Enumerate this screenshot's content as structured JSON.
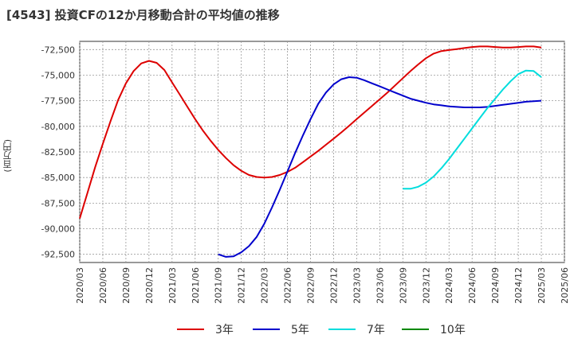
{
  "chart_data": {
    "type": "line",
    "title": "[4543]  投資CFの12か月移動合計の平均値の推移",
    "ylabel": "(百万円)",
    "xlabel": "",
    "ylim": [
      -93300,
      -71700
    ],
    "yticks": [
      -72500,
      -75000,
      -77500,
      -80000,
      -82500,
      -85000,
      -87500,
      -90000,
      -92500
    ],
    "ytick_labels": [
      "-72,500",
      "-75,000",
      "-77,500",
      "-80,000",
      "-82,500",
      "-85,000",
      "-87,500",
      "-90,000",
      "-92,500"
    ],
    "x_range": [
      "2020-03",
      "2025-06"
    ],
    "xtick_labels": [
      "2020/03",
      "2020/06",
      "2020/09",
      "2020/12",
      "2021/03",
      "2021/06",
      "2021/09",
      "2021/12",
      "2022/03",
      "2022/06",
      "2022/09",
      "2022/12",
      "2023/03",
      "2023/06",
      "2023/09",
      "2023/12",
      "2024/03",
      "2024/06",
      "2024/09",
      "2024/12",
      "2025/03",
      "2025/06"
    ],
    "grid": true,
    "legend_position": "bottom",
    "series": [
      {
        "name": "3年",
        "color": "#dd0000",
        "x": [
          "2020-03",
          "2020-04",
          "2020-05",
          "2020-06",
          "2020-07",
          "2020-08",
          "2020-09",
          "2020-10",
          "2020-11",
          "2020-12",
          "2021-01",
          "2021-02",
          "2021-03",
          "2021-04",
          "2021-05",
          "2021-06",
          "2021-07",
          "2021-08",
          "2021-09",
          "2021-10",
          "2021-11",
          "2021-12",
          "2022-01",
          "2022-02",
          "2022-03",
          "2022-04",
          "2022-05",
          "2022-06",
          "2022-07",
          "2022-08",
          "2022-09",
          "2022-10",
          "2022-11",
          "2022-12",
          "2023-01",
          "2023-02",
          "2023-03",
          "2023-04",
          "2023-05",
          "2023-06",
          "2023-07",
          "2023-08",
          "2023-09",
          "2023-10",
          "2023-11",
          "2023-12",
          "2024-01",
          "2024-02",
          "2024-03",
          "2024-04",
          "2024-05",
          "2024-06",
          "2024-07",
          "2024-08",
          "2024-09",
          "2024-10",
          "2024-11",
          "2024-12",
          "2025-01",
          "2025-02",
          "2025-03"
        ],
        "values": [
          -89000,
          -86500,
          -84000,
          -81700,
          -79500,
          -77400,
          -75800,
          -74600,
          -73850,
          -73600,
          -73800,
          -74500,
          -75700,
          -76900,
          -78100,
          -79300,
          -80400,
          -81400,
          -82300,
          -83100,
          -83800,
          -84350,
          -84750,
          -84950,
          -85000,
          -84950,
          -84750,
          -84450,
          -84050,
          -83500,
          -82950,
          -82400,
          -81800,
          -81200,
          -80600,
          -79950,
          -79300,
          -78650,
          -78000,
          -77350,
          -76700,
          -76000,
          -75300,
          -74600,
          -73950,
          -73350,
          -72900,
          -72650,
          -72550,
          -72450,
          -72350,
          -72250,
          -72200,
          -72200,
          -72250,
          -72300,
          -72300,
          -72250,
          -72200,
          -72200,
          -72300
        ]
      },
      {
        "name": "5年",
        "color": "#0000cc",
        "x": [
          "2021-09",
          "2021-10",
          "2021-11",
          "2021-12",
          "2022-01",
          "2022-02",
          "2022-03",
          "2022-04",
          "2022-05",
          "2022-06",
          "2022-07",
          "2022-08",
          "2022-09",
          "2022-10",
          "2022-11",
          "2022-12",
          "2023-01",
          "2023-02",
          "2023-03",
          "2023-04",
          "2023-05",
          "2023-06",
          "2023-07",
          "2023-08",
          "2023-09",
          "2023-10",
          "2023-11",
          "2023-12",
          "2024-01",
          "2024-02",
          "2024-03",
          "2024-04",
          "2024-05",
          "2024-06",
          "2024-07",
          "2024-08",
          "2024-09",
          "2024-10",
          "2024-11",
          "2024-12",
          "2025-01",
          "2025-02",
          "2025-03"
        ],
        "values": [
          -92500,
          -92750,
          -92700,
          -92300,
          -91700,
          -90800,
          -89500,
          -87900,
          -86200,
          -84400,
          -82600,
          -80900,
          -79300,
          -77800,
          -76700,
          -75900,
          -75400,
          -75200,
          -75250,
          -75500,
          -75800,
          -76100,
          -76400,
          -76700,
          -77000,
          -77300,
          -77500,
          -77700,
          -77850,
          -77950,
          -78050,
          -78100,
          -78150,
          -78150,
          -78150,
          -78100,
          -78000,
          -77900,
          -77800,
          -77700,
          -77600,
          -77550,
          -77500
        ]
      },
      {
        "name": "7年",
        "color": "#00dddd",
        "x": [
          "2023-09",
          "2023-10",
          "2023-11",
          "2023-12",
          "2024-01",
          "2024-02",
          "2024-03",
          "2024-04",
          "2024-05",
          "2024-06",
          "2024-07",
          "2024-08",
          "2024-09",
          "2024-10",
          "2024-11",
          "2024-12",
          "2025-01",
          "2025-02",
          "2025-03"
        ],
        "values": [
          -86100,
          -86100,
          -85900,
          -85500,
          -84900,
          -84100,
          -83200,
          -82200,
          -81200,
          -80200,
          -79200,
          -78200,
          -77300,
          -76400,
          -75600,
          -74900,
          -74550,
          -74600,
          -75200
        ]
      },
      {
        "name": "10年",
        "color": "#008800",
        "x": [],
        "values": []
      }
    ]
  }
}
